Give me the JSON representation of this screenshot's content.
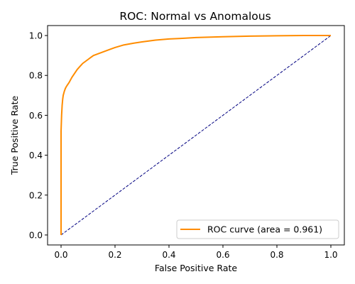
{
  "chart_data": {
    "type": "line",
    "title": "ROC: Normal vs Anomalous",
    "xlabel": "False Positive Rate",
    "ylabel": "True Positive Rate",
    "xlim": [
      -0.05,
      1.05
    ],
    "ylim": [
      -0.05,
      1.05
    ],
    "xticks": [
      "0.0",
      "0.2",
      "0.4",
      "0.6",
      "0.8",
      "1.0"
    ],
    "yticks": [
      "0.0",
      "0.2",
      "0.4",
      "0.6",
      "0.8",
      "1.0"
    ],
    "grid": false,
    "legend_position": "lower-right",
    "series": [
      {
        "name": "ROC curve (area = 0.961)",
        "color": "#ff8c00",
        "style": "solid",
        "x": [
          0.0,
          0.0,
          0.002,
          0.004,
          0.006,
          0.008,
          0.012,
          0.016,
          0.02,
          0.03,
          0.04,
          0.05,
          0.06,
          0.07,
          0.08,
          0.1,
          0.12,
          0.15,
          0.18,
          0.2,
          0.23,
          0.27,
          0.3,
          0.35,
          0.4,
          0.45,
          0.5,
          0.6,
          0.7,
          0.8,
          0.9,
          1.0
        ],
        "y": [
          0.0,
          0.52,
          0.6,
          0.65,
          0.68,
          0.7,
          0.72,
          0.735,
          0.745,
          0.765,
          0.79,
          0.81,
          0.83,
          0.845,
          0.86,
          0.88,
          0.9,
          0.915,
          0.93,
          0.94,
          0.952,
          0.962,
          0.968,
          0.977,
          0.983,
          0.986,
          0.99,
          0.994,
          0.997,
          0.999,
          1.0,
          1.0
        ]
      },
      {
        "name": "",
        "color": "#000080",
        "style": "dashed",
        "x": [
          0.0,
          1.0
        ],
        "y": [
          0.0,
          1.0
        ]
      }
    ]
  }
}
